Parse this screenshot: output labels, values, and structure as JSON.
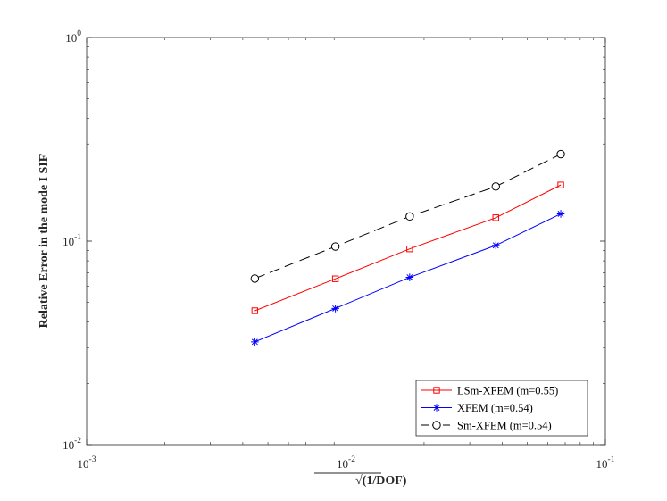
{
  "chart_data": {
    "type": "line",
    "xscale": "log",
    "yscale": "log",
    "xlim": [
      0.001,
      0.1
    ],
    "ylim": [
      0.01,
      1
    ],
    "xlabel": "√(1/DOF)",
    "ylabel": "Relative Error in the mode I SIF",
    "grid": false,
    "legend_position": "bottom-right",
    "x_ticks": [
      {
        "value": 0.001,
        "base": "10",
        "exp": "-3"
      },
      {
        "value": 0.01,
        "base": "10",
        "exp": "-2"
      },
      {
        "value": 0.1,
        "base": "10",
        "exp": "-1"
      }
    ],
    "y_ticks": [
      {
        "value": 0.01,
        "base": "10",
        "exp": "-2"
      },
      {
        "value": 0.1,
        "base": "10",
        "exp": "-1"
      },
      {
        "value": 1,
        "base": "10",
        "exp": "0"
      }
    ],
    "x": [
      0.00445,
      0.0091,
      0.0176,
      0.0378,
      0.0673
    ],
    "series": [
      {
        "name": "LSm-XFEM (m=0.55)",
        "color": "#ff0000",
        "marker": "square",
        "dash": "solid",
        "values": [
          0.0455,
          0.0653,
          0.0916,
          0.1303,
          0.1887
        ]
      },
      {
        "name": "XFEM (m=0.54)",
        "color": "#0000ff",
        "marker": "star",
        "dash": "solid",
        "values": [
          0.032,
          0.0467,
          0.0664,
          0.0953,
          0.1361
        ]
      },
      {
        "name": "Sm-XFEM (m=0.54)",
        "color": "#000000",
        "marker": "circle",
        "dash": "dashed",
        "values": [
          0.0655,
          0.0941,
          0.1322,
          0.1855,
          0.2675
        ]
      }
    ]
  }
}
